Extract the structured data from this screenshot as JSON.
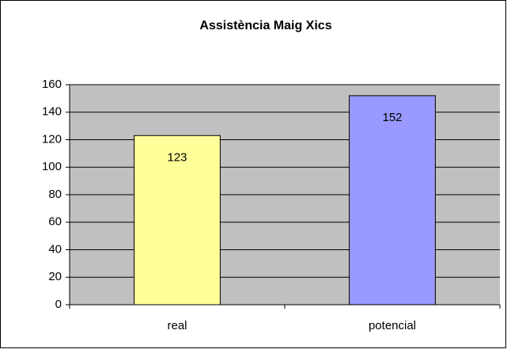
{
  "chart_data": {
    "type": "bar",
    "title": "Assistència Maig Xics",
    "categories": [
      "real",
      "potencial"
    ],
    "values": [
      123,
      152
    ],
    "colors": [
      "#ffff99",
      "#9999ff"
    ],
    "plot_background": "#c0c0c0",
    "ylim": [
      0,
      160
    ],
    "yticks": [
      0,
      20,
      40,
      60,
      80,
      100,
      120,
      140,
      160
    ],
    "grid": true
  }
}
